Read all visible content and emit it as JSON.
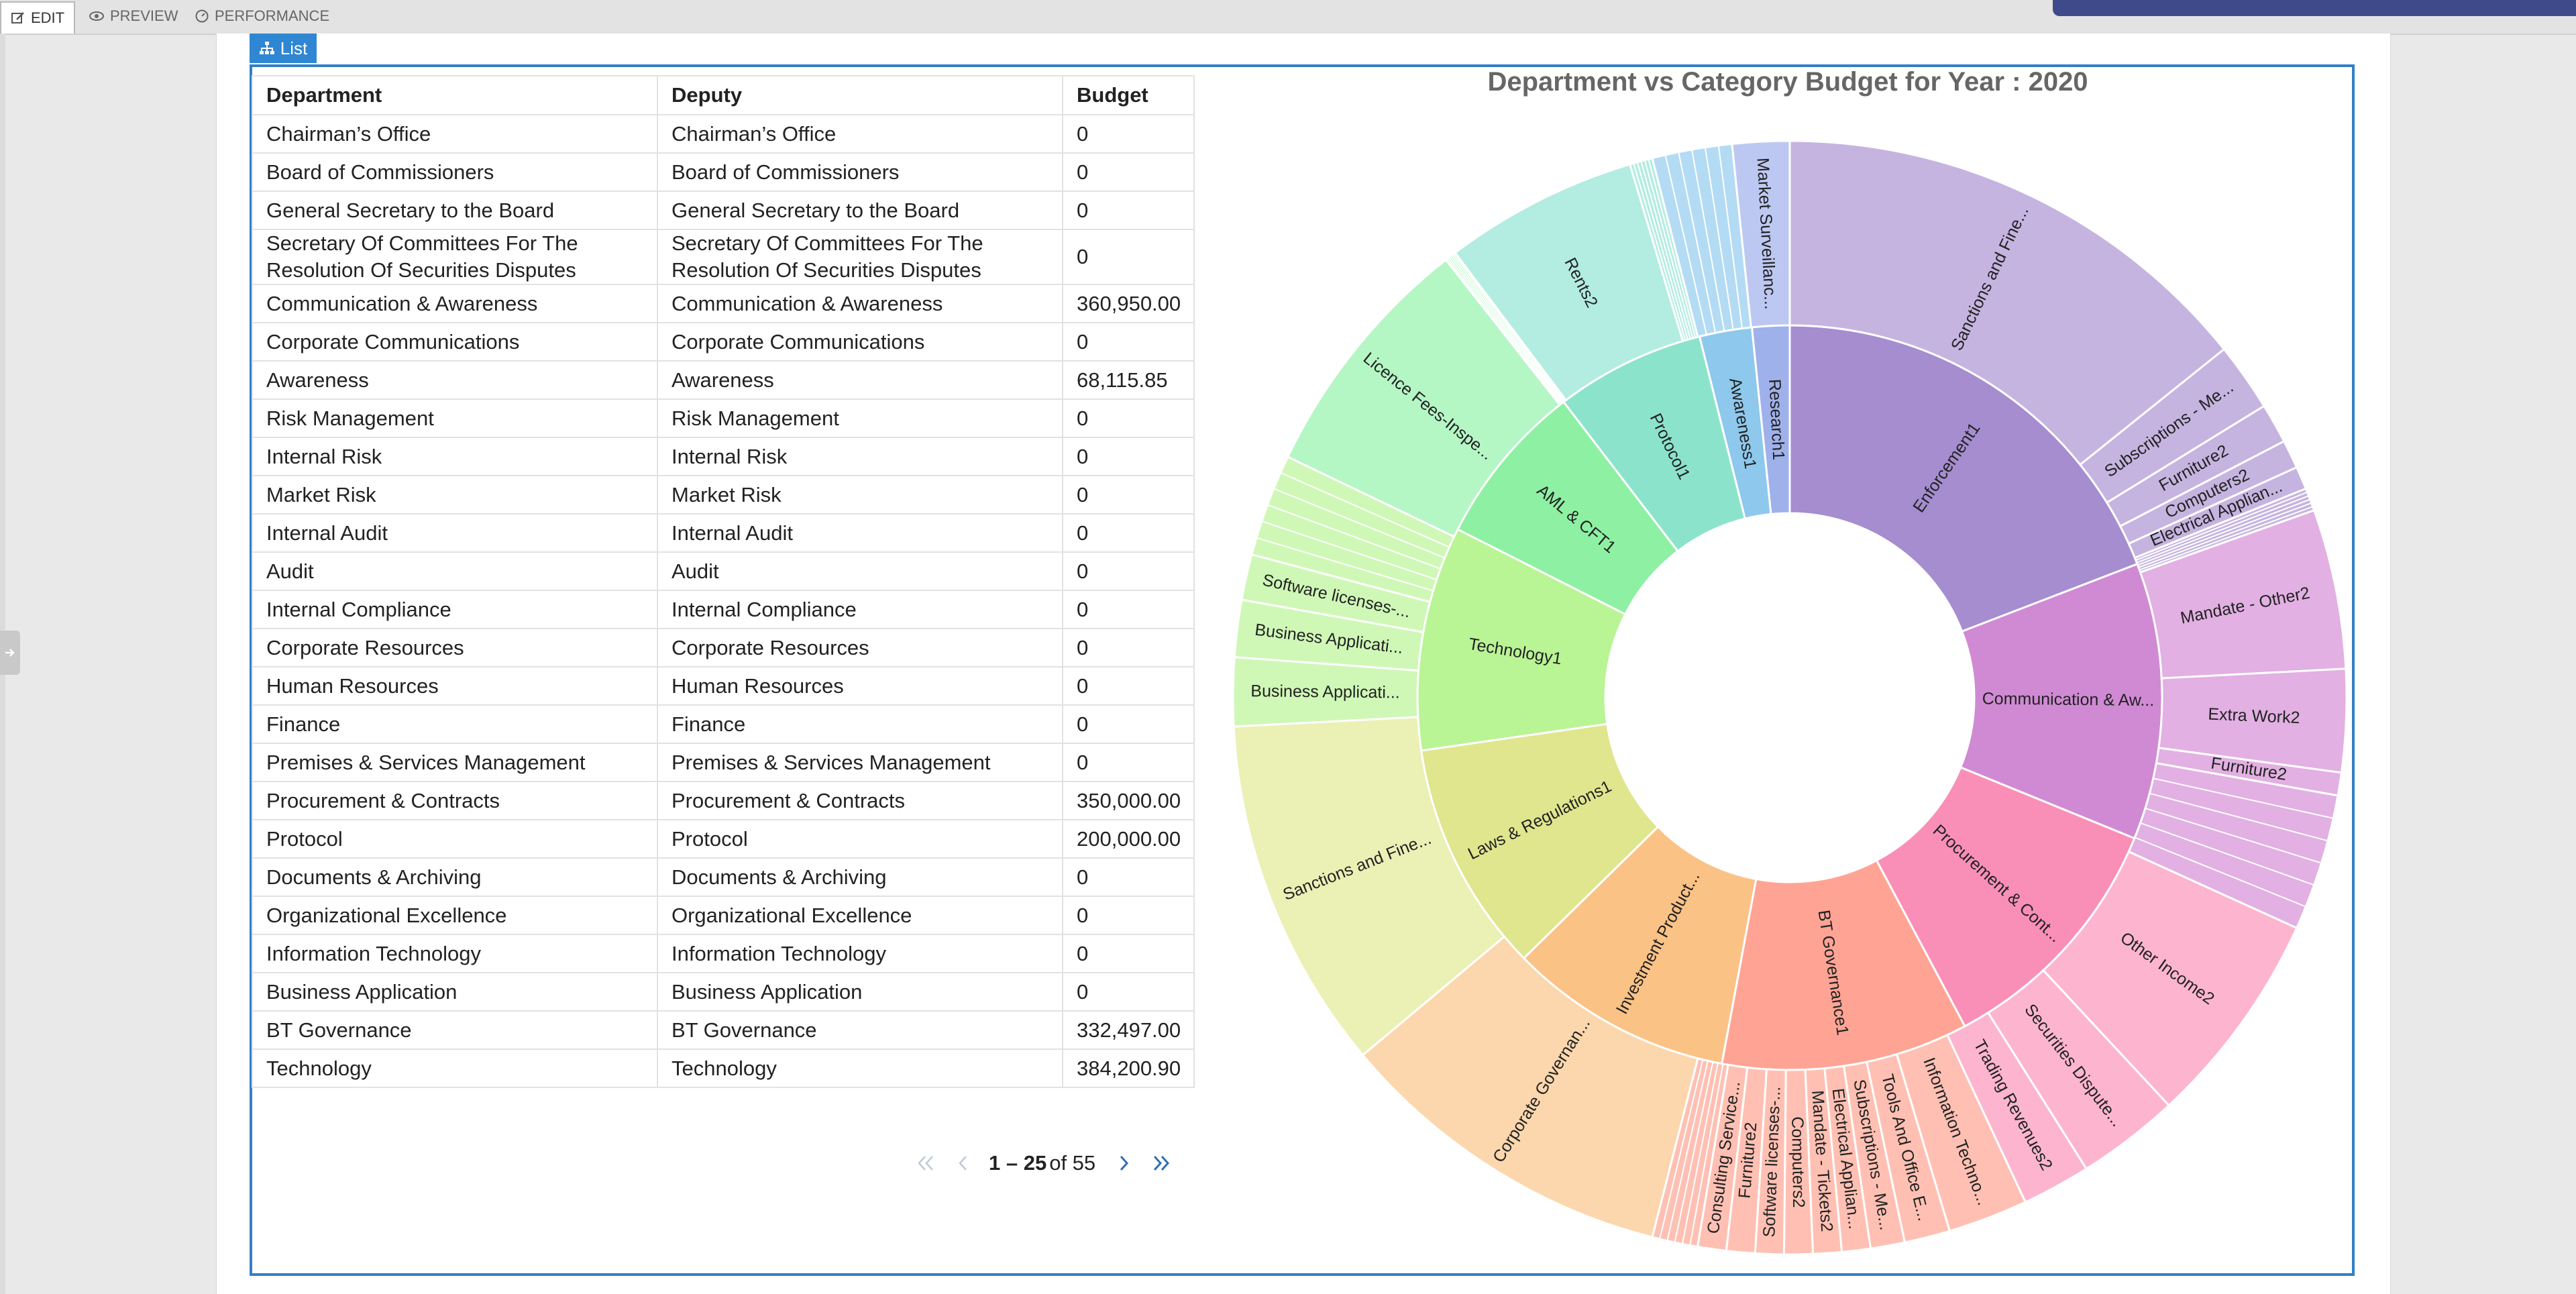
{
  "toolbar": {
    "tabs": [
      {
        "label": "EDIT",
        "icon": "edit-icon"
      },
      {
        "label": "PREVIEW",
        "icon": "eye-icon"
      },
      {
        "label": "PERFORMANCE",
        "icon": "gauge-icon"
      }
    ]
  },
  "panel": {
    "tab_label": "List",
    "tab_icon": "hierarchy-icon"
  },
  "table": {
    "columns": [
      "Department",
      "Deputy",
      "Budget"
    ],
    "rows": [
      [
        "Chairman’s Office",
        "Chairman’s Office",
        "0"
      ],
      [
        "Board of Commissioners",
        "Board of Commissioners",
        "0"
      ],
      [
        "General Secretary to the Board",
        "General Secretary to the Board",
        "0"
      ],
      [
        "Secretary Of Committees For The Resolution Of Securities Disputes",
        "Secretary Of Committees For The Resolution Of Securities Disputes",
        "0"
      ],
      [
        "Communication & Awareness",
        "Communication & Awareness",
        "360,950.00"
      ],
      [
        "Corporate Communications",
        "Corporate Communications",
        "0"
      ],
      [
        "Awareness",
        "Awareness",
        "68,115.85"
      ],
      [
        "Risk Management",
        "Risk Management",
        "0"
      ],
      [
        "Internal Risk",
        "Internal Risk",
        "0"
      ],
      [
        "Market Risk",
        "Market Risk",
        "0"
      ],
      [
        "Internal Audit",
        "Internal Audit",
        "0"
      ],
      [
        "Audit",
        "Audit",
        "0"
      ],
      [
        "Internal Compliance",
        "Internal Compliance",
        "0"
      ],
      [
        "Corporate Resources",
        "Corporate Resources",
        "0"
      ],
      [
        "Human Resources",
        "Human Resources",
        "0"
      ],
      [
        "Finance",
        "Finance",
        "0"
      ],
      [
        "Premises & Services Management",
        "Premises & Services Management",
        "0"
      ],
      [
        "Procurement & Contracts",
        "Procurement & Contracts",
        "350,000.00"
      ],
      [
        "Protocol",
        "Protocol",
        "200,000.00"
      ],
      [
        "Documents & Archiving",
        "Documents & Archiving",
        "0"
      ],
      [
        "Organizational Excellence",
        "Organizational Excellence",
        "0"
      ],
      [
        "Information Technology",
        "Information Technology",
        "0"
      ],
      [
        "Business Application",
        "Business Application",
        "0"
      ],
      [
        "BT Governance",
        "BT Governance",
        "332,497.00"
      ],
      [
        "Technology",
        "Technology",
        "384,200.90"
      ]
    ]
  },
  "pagination": {
    "range": "1 – 25",
    "of_text": "of 55"
  },
  "chart_data": {
    "type": "sunburst",
    "title": "Department vs Category Budget for Year : 2020",
    "inner": [
      {
        "label": "Enforcement1",
        "value": 59,
        "color": "#a58dd0"
      },
      {
        "label": "Communication & Aw...",
        "value": 37,
        "color": "#d08ad4"
      },
      {
        "label": "Procurement & Cont...",
        "value": 34,
        "color": "#f98fb7"
      },
      {
        "label": "BT Governance1",
        "value": 33,
        "color": "#ffa494"
      },
      {
        "label": "Investment Product...",
        "value": 30,
        "color": "#fbc286"
      },
      {
        "label": "Laws & Regulations1",
        "value": 31,
        "color": "#dfe68e"
      },
      {
        "label": "Technology1",
        "value": 30,
        "color": "#b9f495"
      },
      {
        "label": "AML & CFT1",
        "value": 22,
        "color": "#8ef0a3"
      },
      {
        "label": "Protocol1",
        "value": 20,
        "color": "#8ce3cb"
      },
      {
        "label": "Awareness1",
        "value": 7,
        "color": "#8ec8ec"
      },
      {
        "label": "Research1",
        "value": 5,
        "color": "#9fb1ea"
      }
    ],
    "outer": [
      {
        "label": "Sanctions and Fine...",
        "value": 43,
        "color": "#c5b4e0",
        "inner": 0
      },
      {
        "label": "Subscriptions - Me...",
        "value": 6,
        "color": "#c5b4e0",
        "inner": 0
      },
      {
        "label": "Furniture2",
        "value": 3.5,
        "color": "#c5b4e0",
        "inner": 0
      },
      {
        "label": "Computers2",
        "value": 2.5,
        "color": "#c5b4e0",
        "inner": 0
      },
      {
        "label": "Electrical Applian...",
        "value": 2,
        "color": "#c5b4e0",
        "inner": 0
      },
      {
        "label": "",
        "value": 2,
        "color": "#c5b4e0",
        "inner": 0,
        "thin": true
      },
      {
        "label": "Mandate - Other2",
        "value": 14,
        "color": "#e2b0e2",
        "inner": 1
      },
      {
        "label": "Extra Work2",
        "value": 9,
        "color": "#e2b0e2",
        "inner": 1
      },
      {
        "label": "Furniture2",
        "value": 2,
        "color": "#e2b0e2",
        "inner": 1
      },
      {
        "label": "",
        "value": 12,
        "color": "#e2b0e2",
        "inner": 1,
        "thin": true
      },
      {
        "label": "Other Income2",
        "value": 19,
        "color": "#fdb5cf",
        "inner": 2
      },
      {
        "label": "Securities Dispute...",
        "value": 9,
        "color": "#fdb5cf",
        "inner": 2
      },
      {
        "label": "Trading Revenues2",
        "value": 6,
        "color": "#fdb5cf",
        "inner": 2
      },
      {
        "label": "Information Techno...",
        "value": 7,
        "color": "#ffc0b3",
        "inner": 3
      },
      {
        "label": "Tools And Office E...",
        "value": 4,
        "color": "#ffc0b3",
        "inner": 3
      },
      {
        "label": "Subscriptions - Me...",
        "value": 3,
        "color": "#ffc0b3",
        "inner": 3
      },
      {
        "label": "Electrical Applian...",
        "value": 2.5,
        "color": "#ffc0b3",
        "inner": 3
      },
      {
        "label": "Mandate - Tickets2",
        "value": 2.5,
        "color": "#ffc0b3",
        "inner": 3
      },
      {
        "label": "Computers2",
        "value": 2.5,
        "color": "#ffc0b3",
        "inner": 3
      },
      {
        "label": "Software licenses-...",
        "value": 2.5,
        "color": "#ffc0b3",
        "inner": 3
      },
      {
        "label": "Furniture2",
        "value": 2.5,
        "color": "#ffc0b3",
        "inner": 3
      },
      {
        "label": "Consulting Service...",
        "value": 2.5,
        "color": "#ffc0b3",
        "inner": 3
      },
      {
        "label": "",
        "value": 4,
        "color": "#ffc0b3",
        "inner": 3,
        "thin": true
      },
      {
        "label": "Corporate Governan...",
        "value": 30,
        "color": "#fcd7ad",
        "inner": 4
      },
      {
        "label": "Sanctions and Fine...",
        "value": 31,
        "color": "#ebf0b5",
        "inner": 5
      },
      {
        "label": "Business Applicati...",
        "value": 6,
        "color": "#cff8b7",
        "inner": 6
      },
      {
        "label": "Business Applicati...",
        "value": 5,
        "color": "#cff8b7",
        "inner": 6
      },
      {
        "label": "Software licenses-...",
        "value": 4,
        "color": "#cff8b7",
        "inner": 6
      },
      {
        "label": "",
        "value": 9,
        "color": "#cff8b7",
        "inner": 6,
        "thin": true
      },
      {
        "label": "Licence Fees-Inspe...",
        "value": 22,
        "color": "#b5f6c5",
        "inner": 7
      },
      {
        "label": "",
        "value": 1,
        "color": "#b5f6c5",
        "inner": 8,
        "thin": true
      },
      {
        "label": "Rents2",
        "value": 17,
        "color": "#b3ece0",
        "inner": 8
      },
      {
        "label": "",
        "value": 2,
        "color": "#b3ece0",
        "inner": 8,
        "thin": true
      },
      {
        "label": "",
        "value": 7,
        "color": "#b3dbf4",
        "inner": 9,
        "thin": true
      },
      {
        "label": "Market Surveillanc...",
        "value": 5,
        "color": "#bdc8f2",
        "inner": 10
      }
    ]
  }
}
